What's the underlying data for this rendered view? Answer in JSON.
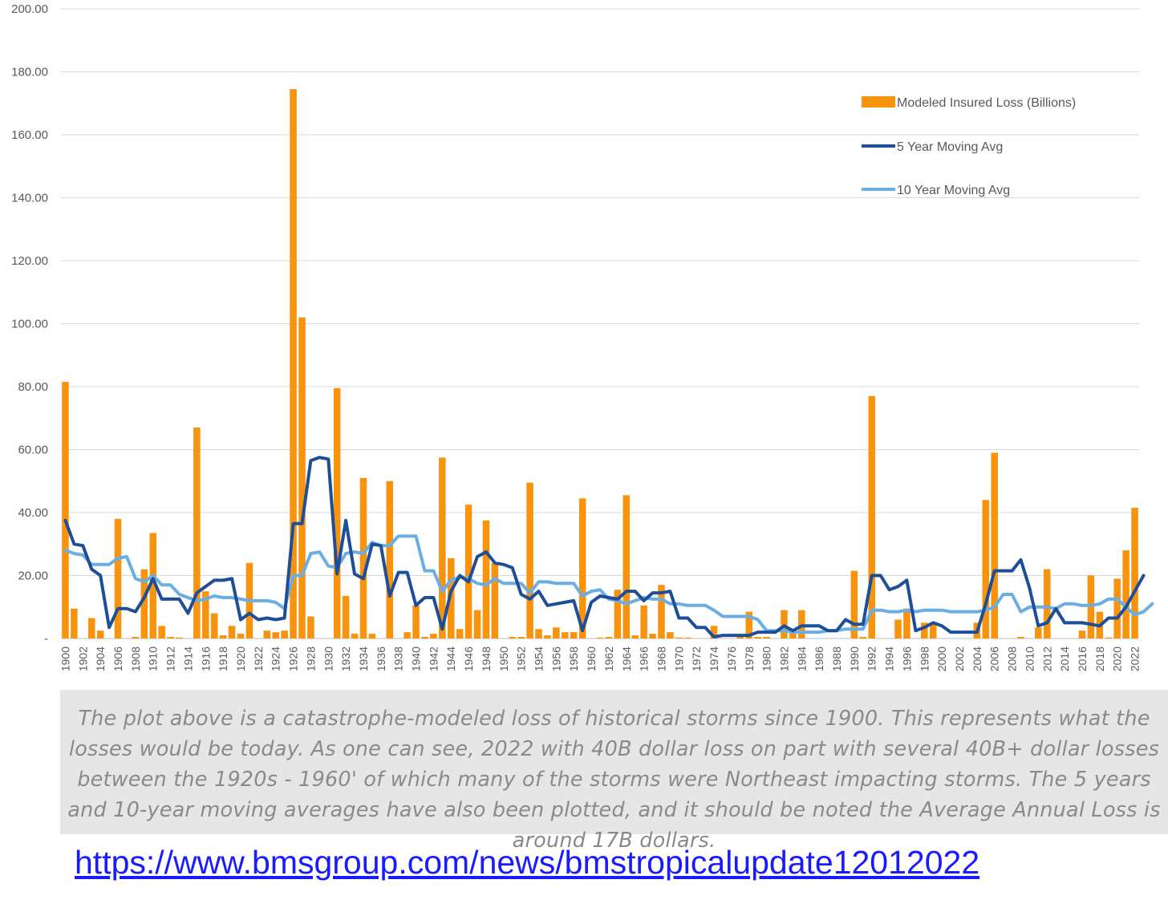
{
  "chart_data": {
    "type": "bar+line",
    "ylim": [
      0,
      200
    ],
    "y_ticks": [
      "-",
      "20.00",
      "40.00",
      "60.00",
      "80.00",
      "100.00",
      "120.00",
      "140.00",
      "160.00",
      "180.00",
      "200.00"
    ],
    "y_tick_values": [
      0,
      20,
      40,
      60,
      80,
      100,
      120,
      140,
      160,
      180,
      200
    ],
    "x_start": 1900,
    "x_end": 2022,
    "x_tick_labels": [
      "1900",
      "1902",
      "1904",
      "1906",
      "1908",
      "1910",
      "1912",
      "1914",
      "1916",
      "1918",
      "1920",
      "1922",
      "1924",
      "1926",
      "1928",
      "1930",
      "1932",
      "1934",
      "1936",
      "1938",
      "1940",
      "1942",
      "1944",
      "1946",
      "1948",
      "1950",
      "1952",
      "1954",
      "1956",
      "1958",
      "1960",
      "1962",
      "1964",
      "1966",
      "1968",
      "1970",
      "1972",
      "1974",
      "1976",
      "1978",
      "1980",
      "1982",
      "1984",
      "1986",
      "1988",
      "1990",
      "1992",
      "1994",
      "1996",
      "1998",
      "2000",
      "2002",
      "2004",
      "2006",
      "2008",
      "2010",
      "2012",
      "2014",
      "2016",
      "2018",
      "2020",
      "2022"
    ],
    "grid": "horizontal",
    "legend_position": "top-right",
    "series": [
      {
        "name": "Modeled Insured Loss (Billions)",
        "kind": "bar",
        "color": "#f7930d",
        "values": [
          81.5,
          9.5,
          0,
          6.5,
          2.5,
          0,
          38,
          0,
          0.5,
          22,
          33.5,
          4,
          0.5,
          0.3,
          0,
          67,
          15,
          8,
          1,
          4,
          1.5,
          24,
          0,
          2.5,
          2,
          2.5,
          174.5,
          102,
          7,
          0,
          0,
          79.5,
          13.5,
          1.5,
          51,
          1.5,
          0,
          50,
          0,
          2,
          10.5,
          0.5,
          1.5,
          57.5,
          25.5,
          3,
          42.5,
          9,
          37.5,
          24,
          0,
          0.5,
          0.5,
          49.5,
          3,
          1,
          3.5,
          2,
          2,
          44.5,
          0,
          0.3,
          0.5,
          15.5,
          45.5,
          1,
          10.5,
          1.5,
          17,
          2,
          0.3,
          0.3,
          0,
          0,
          4,
          0,
          0,
          0.5,
          8.5,
          0.5,
          0.5,
          0,
          9,
          3,
          9,
          0,
          0,
          0,
          0,
          0,
          21.5,
          0.5,
          77,
          0,
          0,
          6,
          9.5,
          0,
          5,
          5,
          0,
          0,
          0,
          0,
          5,
          44,
          59,
          0,
          0,
          0.5,
          0,
          3.5,
          22,
          0,
          0,
          0,
          2.5,
          20,
          8.5,
          0.3,
          19,
          28,
          41.5
        ]
      },
      {
        "name": "5 Year Moving Avg",
        "kind": "line",
        "color": "#1f4e99",
        "values": [
          37.5,
          30,
          29.5,
          22,
          20,
          3.5,
          9.5,
          9.5,
          8.5,
          13,
          19,
          12.5,
          12.5,
          12.5,
          8,
          14.5,
          16.5,
          18.5,
          18.5,
          19,
          6,
          8,
          6,
          6.5,
          6,
          6.5,
          36.5,
          36.5,
          56.5,
          57.5,
          57,
          20.5,
          37.5,
          20.5,
          19,
          30,
          29.5,
          13.5,
          21,
          21,
          10.5,
          13,
          13,
          3,
          15,
          20,
          18,
          26,
          27.5,
          24,
          23.5,
          22.5,
          14,
          12.5,
          15,
          10.5,
          11,
          11.5,
          12,
          2.5,
          11.5,
          13.5,
          13,
          12.5,
          15,
          15,
          12,
          14.5,
          14.5,
          15,
          6.5,
          6.5,
          3.5,
          3.5,
          0.5,
          1,
          1,
          1,
          1,
          2,
          2,
          2,
          4,
          2.5,
          4,
          4,
          4,
          2.5,
          2.5,
          6,
          4.5,
          4.5,
          20,
          20,
          15.5,
          16.5,
          18.5,
          2.5,
          3.5,
          5,
          4,
          2,
          2,
          2,
          2,
          11,
          21.5,
          21.5,
          21.5,
          25,
          16,
          4,
          5,
          9.5,
          5,
          5,
          5,
          4.5,
          4,
          6.5,
          6.5,
          10,
          15,
          20
        ]
      },
      {
        "name": "10 Year Moving Avg",
        "kind": "line",
        "color": "#6baee4",
        "values": [
          28,
          27,
          26.5,
          23.5,
          23.5,
          23.5,
          25.5,
          26,
          19,
          18,
          20,
          17,
          17,
          14,
          13,
          12,
          12.5,
          13.5,
          13,
          13,
          12.5,
          12,
          12,
          12,
          11.5,
          9.5,
          20,
          20,
          27,
          27.5,
          23,
          22.5,
          27,
          27.5,
          27,
          30.5,
          29.5,
          29.5,
          32.5,
          32.5,
          32.5,
          21.5,
          21.5,
          15,
          18.5,
          19.5,
          19,
          17.5,
          17,
          19,
          17.5,
          17.5,
          17.5,
          14.5,
          18,
          18,
          17.5,
          17.5,
          17.5,
          13.5,
          15,
          15.5,
          12.5,
          12,
          11,
          12,
          13,
          12.5,
          12.5,
          11,
          11,
          10.5,
          10.5,
          10.5,
          9,
          7,
          7,
          7,
          7,
          6,
          2.5,
          2.5,
          2.5,
          2,
          2,
          2,
          2,
          2.5,
          2.5,
          3,
          3,
          3,
          9,
          9,
          8.5,
          8.5,
          9,
          8.5,
          9,
          9,
          9,
          8.5,
          8.5,
          8.5,
          8.5,
          9,
          10,
          14,
          14,
          8.5,
          10,
          10,
          10,
          9.5,
          11,
          11,
          10.5,
          10.5,
          11,
          12.5,
          12.5,
          10,
          7.5,
          8.5,
          11
        ]
      }
    ]
  },
  "caption": "The plot above is a catastrophe-modeled loss of historical storms since 1900. This represents what the losses would be today. As one can see, 2022 with 40B dollar loss on part with several 40B+ dollar losses between the 1920s - 1960' of which many of the storms were Northeast impacting storms. The 5 years and 10-year moving averages have also been plotted, and it should be noted the Average Annual Loss is around 17B dollars.",
  "link_text": "https://www.bmsgroup.com/news/bmstropicalupdate12012022"
}
